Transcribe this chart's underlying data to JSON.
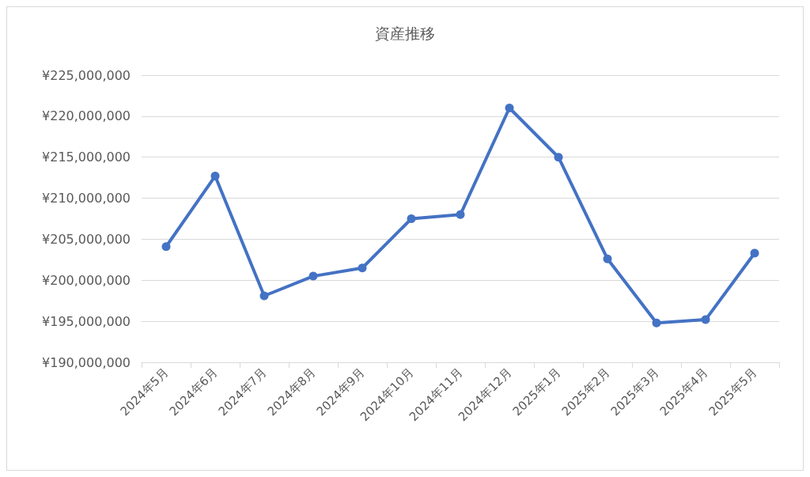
{
  "chart_data": {
    "type": "line",
    "title": "資産推移",
    "categories": [
      "2024年5月",
      "2024年6月",
      "2024年7月",
      "2024年8月",
      "2024年9月",
      "2024年10月",
      "2024年11月",
      "2024年12月",
      "2025年1月",
      "2025年2月",
      "2025年3月",
      "2025年4月",
      "2025年5月"
    ],
    "series": [
      {
        "color": "#4472c4",
        "values": [
          204100000,
          212700000,
          198100000,
          200500000,
          201500000,
          207500000,
          208000000,
          221000000,
          215000000,
          202600000,
          194800000,
          195200000,
          203300000
        ]
      }
    ],
    "ylim": [
      190000000,
      225000000
    ],
    "yticks": [
      {
        "value": 190000000,
        "label": "¥190,000,000"
      },
      {
        "value": 195000000,
        "label": "¥195,000,000"
      },
      {
        "value": 200000000,
        "label": "¥200,000,000"
      },
      {
        "value": 205000000,
        "label": "¥205,000,000"
      },
      {
        "value": 210000000,
        "label": "¥210,000,000"
      },
      {
        "value": 215000000,
        "label": "¥215,000,000"
      },
      {
        "value": 220000000,
        "label": "¥220,000,000"
      },
      {
        "value": 225000000,
        "label": "¥225,000,000"
      }
    ],
    "grid": "y",
    "marker": "circle",
    "line_style": "solid"
  }
}
